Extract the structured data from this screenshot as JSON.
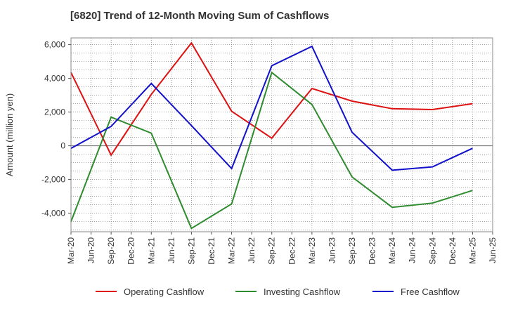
{
  "title": "[6820]  Trend of 12-Month Moving Sum of Cashflows",
  "chart_data": {
    "type": "line",
    "title": "[6820]  Trend of 12-Month Moving Sum of Cashflows",
    "xlabel": "",
    "ylabel": "Amount (million yen)",
    "categories": [
      "Mar-20",
      "Jun-20",
      "Sep-20",
      "Dec-20",
      "Mar-21",
      "Jun-21",
      "Sep-21",
      "Dec-21",
      "Mar-22",
      "Jun-22",
      "Sep-22",
      "Dec-22",
      "Mar-23",
      "Jun-23",
      "Sep-23",
      "Dec-23",
      "Mar-24",
      "Jun-24",
      "Sep-24",
      "Dec-24",
      "Mar-25",
      "Jun-25"
    ],
    "y_ticks": [
      -4000,
      -2000,
      0,
      2000,
      4000,
      6000
    ],
    "y_tick_labels": [
      "-4,000",
      "-2,000",
      "0",
      "2,000",
      "4,000",
      "6,000"
    ],
    "ylim": [
      -5100,
      6400
    ],
    "grid": true,
    "legend_position": "bottom",
    "series": [
      {
        "name": "Operating Cashflow",
        "color": "#dd1111",
        "points": [
          {
            "x": "Mar-20",
            "y": 4350
          },
          {
            "x": "Sep-20",
            "y": -550
          },
          {
            "x": "Mar-21",
            "y": 3050
          },
          {
            "x": "Sep-21",
            "y": 6100
          },
          {
            "x": "Mar-22",
            "y": 2050
          },
          {
            "x": "Sep-22",
            "y": 450
          },
          {
            "x": "Mar-23",
            "y": 3400
          },
          {
            "x": "Sep-23",
            "y": 2650
          },
          {
            "x": "Mar-24",
            "y": 2200
          },
          {
            "x": "Sep-24",
            "y": 2150
          },
          {
            "x": "Mar-25",
            "y": 2500
          }
        ]
      },
      {
        "name": "Investing Cashflow",
        "color": "#2e8b2e",
        "points": [
          {
            "x": "Mar-20",
            "y": -4500
          },
          {
            "x": "Sep-20",
            "y": 1700
          },
          {
            "x": "Mar-21",
            "y": 750
          },
          {
            "x": "Sep-21",
            "y": -4900
          },
          {
            "x": "Mar-22",
            "y": -3450
          },
          {
            "x": "Sep-22",
            "y": 4350
          },
          {
            "x": "Mar-23",
            "y": 2450
          },
          {
            "x": "Sep-23",
            "y": -1850
          },
          {
            "x": "Mar-24",
            "y": -3650
          },
          {
            "x": "Sep-24",
            "y": -3400
          },
          {
            "x": "Mar-25",
            "y": -2650
          }
        ]
      },
      {
        "name": "Free Cashflow",
        "color": "#1111cc",
        "points": [
          {
            "x": "Mar-20",
            "y": -150
          },
          {
            "x": "Sep-20",
            "y": 1150
          },
          {
            "x": "Mar-21",
            "y": 3700
          },
          {
            "x": "Sep-21",
            "y": 1200
          },
          {
            "x": "Mar-22",
            "y": -1350
          },
          {
            "x": "Sep-22",
            "y": 4750
          },
          {
            "x": "Mar-23",
            "y": 5900
          },
          {
            "x": "Sep-23",
            "y": 800
          },
          {
            "x": "Mar-24",
            "y": -1450
          },
          {
            "x": "Sep-24",
            "y": -1250
          },
          {
            "x": "Mar-25",
            "y": -150
          }
        ]
      }
    ]
  }
}
